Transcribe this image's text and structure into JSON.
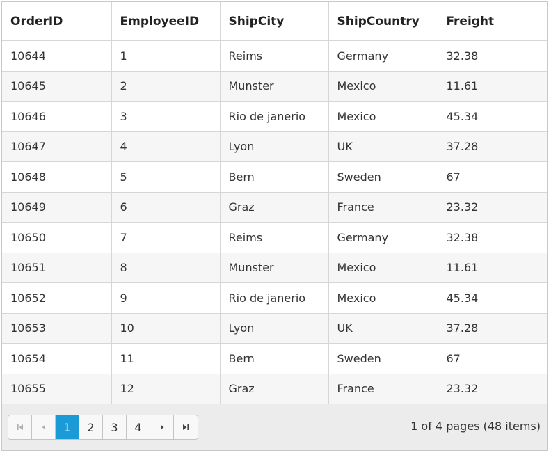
{
  "columns": [
    "OrderID",
    "EmployeeID",
    "ShipCity",
    "ShipCountry",
    "Freight"
  ],
  "rows": [
    [
      "10644",
      "1",
      "Reims",
      "Germany",
      "32.38"
    ],
    [
      "10645",
      "2",
      "Munster",
      "Mexico",
      "11.61"
    ],
    [
      "10646",
      "3",
      "Rio de janerio",
      "Mexico",
      "45.34"
    ],
    [
      "10647",
      "4",
      "Lyon",
      "UK",
      "37.28"
    ],
    [
      "10648",
      "5",
      "Bern",
      "Sweden",
      "67"
    ],
    [
      "10649",
      "6",
      "Graz",
      "France",
      "23.32"
    ],
    [
      "10650",
      "7",
      "Reims",
      "Germany",
      "32.38"
    ],
    [
      "10651",
      "8",
      "Munster",
      "Mexico",
      "11.61"
    ],
    [
      "10652",
      "9",
      "Rio de janerio",
      "Mexico",
      "45.34"
    ],
    [
      "10653",
      "10",
      "Lyon",
      "UK",
      "37.28"
    ],
    [
      "10654",
      "11",
      "Bern",
      "Sweden",
      "67"
    ],
    [
      "10655",
      "12",
      "Graz",
      "France",
      "23.32"
    ]
  ],
  "pager": {
    "pages": [
      "1",
      "2",
      "3",
      "4"
    ],
    "current_page": "1",
    "info": "1 of 4 pages (48 items)",
    "icons": {
      "first": "first-page-icon",
      "prev": "previous-page-icon",
      "next": "next-page-icon",
      "last": "last-page-icon"
    }
  },
  "colors": {
    "active_page": "#1a9ad6",
    "alt_row": "#f6f6f6",
    "pager_bg": "#ececec"
  }
}
